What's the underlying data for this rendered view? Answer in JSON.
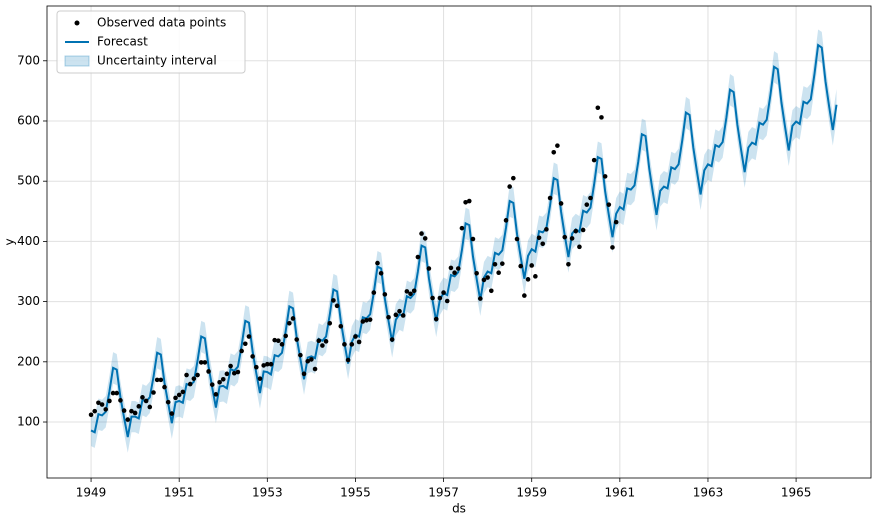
{
  "chart_data": {
    "type": "line",
    "x_label": "ds",
    "y_label": "y",
    "xlim": [
      1948.0,
      1966.7
    ],
    "ylim": [
      7,
      791
    ],
    "xticks": [
      1949,
      1951,
      1953,
      1955,
      1957,
      1959,
      1961,
      1963,
      1965
    ],
    "yticks": [
      100,
      200,
      300,
      400,
      500,
      600,
      700
    ],
    "grid": true,
    "legend": "upper-left",
    "x": [
      1949,
      1949.083,
      1949.167,
      1949.25,
      1949.333,
      1949.417,
      1949.5,
      1949.583,
      1949.667,
      1949.75,
      1949.833,
      1949.917,
      1950,
      1950.083,
      1950.167,
      1950.25,
      1950.333,
      1950.417,
      1950.5,
      1950.583,
      1950.667,
      1950.75,
      1950.833,
      1950.917,
      1951,
      1951.083,
      1951.167,
      1951.25,
      1951.333,
      1951.417,
      1951.5,
      1951.583,
      1951.667,
      1951.75,
      1951.833,
      1951.917,
      1952,
      1952.083,
      1952.167,
      1952.25,
      1952.333,
      1952.417,
      1952.5,
      1952.583,
      1952.667,
      1952.75,
      1952.833,
      1952.917,
      1953,
      1953.083,
      1953.167,
      1953.25,
      1953.333,
      1953.417,
      1953.5,
      1953.583,
      1953.667,
      1953.75,
      1953.833,
      1953.917,
      1954,
      1954.083,
      1954.167,
      1954.25,
      1954.333,
      1954.417,
      1954.5,
      1954.583,
      1954.667,
      1954.75,
      1954.833,
      1954.917,
      1955,
      1955.083,
      1955.167,
      1955.25,
      1955.333,
      1955.417,
      1955.5,
      1955.583,
      1955.667,
      1955.75,
      1955.833,
      1955.917,
      1956,
      1956.083,
      1956.167,
      1956.25,
      1956.333,
      1956.417,
      1956.5,
      1956.583,
      1956.667,
      1956.75,
      1956.833,
      1956.917,
      1957,
      1957.083,
      1957.167,
      1957.25,
      1957.333,
      1957.417,
      1957.5,
      1957.583,
      1957.667,
      1957.75,
      1957.833,
      1957.917,
      1958,
      1958.083,
      1958.167,
      1958.25,
      1958.333,
      1958.417,
      1958.5,
      1958.583,
      1958.667,
      1958.75,
      1958.833,
      1958.917,
      1959,
      1959.083,
      1959.167,
      1959.25,
      1959.333,
      1959.417,
      1959.5,
      1959.583,
      1959.667,
      1959.75,
      1959.833,
      1959.917,
      1960,
      1960.083,
      1960.167,
      1960.25,
      1960.333,
      1960.417,
      1960.5,
      1960.583,
      1960.667,
      1960.75,
      1960.833,
      1960.917,
      1961,
      1961.083,
      1961.167,
      1961.25,
      1961.333,
      1961.417,
      1961.5,
      1961.583,
      1961.667,
      1961.75,
      1961.833,
      1961.917,
      1962,
      1962.083,
      1962.167,
      1962.25,
      1962.333,
      1962.417,
      1962.5,
      1962.583,
      1962.667,
      1962.75,
      1962.833,
      1962.917,
      1963,
      1963.083,
      1963.167,
      1963.25,
      1963.333,
      1963.417,
      1963.5,
      1963.583,
      1963.667,
      1963.75,
      1963.833,
      1963.917,
      1964,
      1964.083,
      1964.167,
      1964.25,
      1964.333,
      1964.417,
      1964.5,
      1964.583,
      1964.667,
      1964.75,
      1964.833,
      1964.917,
      1965,
      1965.083,
      1965.167,
      1965.25,
      1965.333,
      1965.417,
      1965.5,
      1965.583,
      1965.667,
      1965.75,
      1965.833,
      1965.917
    ],
    "series": [
      {
        "name": "Uncertainty interval",
        "type": "band",
        "color": "#0072b2",
        "lower": [
          60,
          57,
          87,
          85,
          91,
          125,
          164,
          161,
          115,
          81,
          49,
          83,
          83,
          80,
          111,
          108,
          115,
          149,
          189,
          186,
          139,
          105,
          72,
          107,
          109,
          106,
          137,
          135,
          141,
          176,
          216,
          213,
          166,
          131,
          98,
          133,
          134,
          130,
          162,
          159,
          166,
          201,
          242,
          239,
          191,
          155,
          122,
          158,
          157,
          153,
          185,
          183,
          189,
          225,
          266,
          263,
          214,
          179,
          145,
          181,
          183,
          180,
          212,
          209,
          216,
          252,
          294,
          291,
          242,
          205,
          171,
          207,
          219,
          216,
          248,
          246,
          253,
          289,
          332,
          329,
          279,
          242,
          207,
          244,
          253,
          250,
          283,
          280,
          287,
          324,
          367,
          364,
          313,
          276,
          241,
          278,
          288,
          285,
          318,
          316,
          323,
          360,
          404,
          401,
          349,
          312,
          276,
          314,
          324,
          321,
          355,
          352,
          359,
          397,
          441,
          438,
          386,
          348,
          312,
          350,
          361,
          357,
          391,
          389,
          396,
          434,
          479,
          476,
          423,
          384,
          348,
          387,
          394,
          390,
          425,
          422,
          430,
          469,
          514,
          511,
          457,
          418,
          381,
          420,
          431,
          427,
          462,
          460,
          467,
          506,
          552,
          549,
          495,
          455,
          418,
          458,
          465,
          462,
          497,
          494,
          502,
          542,
          588,
          584,
          530,
          490,
          452,
          492,
          502,
          499,
          534,
          531,
          539,
          579,
          626,
          622,
          568,
          527,
          489,
          530,
          538,
          535,
          571,
          568,
          576,
          617,
          664,
          660,
          605,
          564,
          525,
          566,
          573,
          569,
          606,
          603,
          610,
          652,
          700,
          696,
          640,
          598,
          559,
          601
        ],
        "upper": [
          112,
          109,
          139,
          137,
          143,
          177,
          216,
          213,
          167,
          133,
          101,
          135,
          135,
          132,
          163,
          160,
          167,
          201,
          241,
          238,
          191,
          157,
          124,
          159,
          161,
          158,
          189,
          187,
          193,
          228,
          268,
          265,
          218,
          183,
          150,
          185,
          186,
          182,
          214,
          211,
          218,
          253,
          294,
          291,
          243,
          207,
          174,
          210,
          209,
          205,
          237,
          235,
          241,
          277,
          318,
          315,
          266,
          231,
          197,
          233,
          235,
          232,
          264,
          261,
          268,
          304,
          346,
          343,
          294,
          257,
          223,
          259,
          271,
          268,
          300,
          298,
          305,
          341,
          384,
          381,
          331,
          294,
          259,
          296,
          305,
          302,
          335,
          332,
          339,
          376,
          419,
          416,
          365,
          328,
          293,
          330,
          340,
          337,
          370,
          368,
          375,
          412,
          456,
          453,
          401,
          364,
          328,
          366,
          376,
          373,
          407,
          404,
          411,
          449,
          493,
          490,
          438,
          400,
          364,
          402,
          413,
          409,
          443,
          441,
          448,
          486,
          531,
          528,
          475,
          436,
          400,
          439,
          446,
          442,
          477,
          474,
          482,
          521,
          566,
          563,
          509,
          470,
          433,
          472,
          483,
          479,
          514,
          512,
          519,
          558,
          604,
          601,
          547,
          507,
          470,
          510,
          517,
          514,
          549,
          546,
          554,
          594,
          640,
          636,
          582,
          542,
          504,
          544,
          554,
          551,
          586,
          583,
          591,
          631,
          678,
          674,
          620,
          579,
          541,
          582,
          590,
          587,
          623,
          620,
          628,
          669,
          716,
          712,
          657,
          616,
          577,
          618,
          625,
          621,
          658,
          655,
          662,
          704,
          752,
          748,
          692,
          650,
          611,
          653
        ]
      },
      {
        "name": "Forecast",
        "type": "line",
        "color": "#0072b2",
        "values": [
          86,
          83,
          113,
          111,
          117,
          151,
          190,
          187,
          141,
          107,
          75,
          109,
          109,
          106,
          137,
          134,
          141,
          175,
          215,
          212,
          165,
          131,
          98,
          133,
          135,
          132,
          163,
          161,
          167,
          202,
          242,
          239,
          192,
          157,
          124,
          159,
          160,
          156,
          188,
          185,
          192,
          227,
          268,
          265,
          217,
          181,
          148,
          184,
          183,
          179,
          211,
          209,
          215,
          251,
          292,
          289,
          240,
          205,
          171,
          207,
          209,
          206,
          238,
          235,
          242,
          278,
          320,
          317,
          268,
          231,
          197,
          233,
          245,
          242,
          274,
          272,
          279,
          315,
          358,
          355,
          305,
          268,
          233,
          270,
          279,
          276,
          309,
          306,
          313,
          350,
          393,
          390,
          339,
          302,
          267,
          304,
          314,
          311,
          344,
          342,
          349,
          386,
          430,
          427,
          375,
          338,
          302,
          340,
          350,
          347,
          381,
          378,
          385,
          423,
          467,
          464,
          412,
          374,
          338,
          376,
          387,
          383,
          417,
          415,
          422,
          460,
          505,
          502,
          449,
          410,
          374,
          413,
          420,
          416,
          451,
          448,
          456,
          495,
          540,
          537,
          483,
          444,
          407,
          446,
          457,
          453,
          488,
          486,
          493,
          532,
          578,
          575,
          521,
          481,
          444,
          484,
          491,
          488,
          523,
          520,
          528,
          568,
          614,
          610,
          556,
          516,
          478,
          518,
          528,
          525,
          560,
          557,
          565,
          605,
          652,
          648,
          594,
          553,
          515,
          556,
          564,
          561,
          597,
          594,
          602,
          643,
          690,
          686,
          631,
          590,
          551,
          592,
          599,
          595,
          632,
          629,
          636,
          678,
          726,
          722,
          666,
          624,
          585,
          627
        ]
      },
      {
        "name": "Observed data points",
        "type": "scatter",
        "color": "#000000",
        "values": [
          112,
          118,
          132,
          129,
          121,
          135,
          148,
          148,
          136,
          119,
          104,
          118,
          115,
          126,
          141,
          135,
          125,
          149,
          170,
          170,
          158,
          133,
          114,
          140,
          145,
          150,
          178,
          163,
          172,
          178,
          199,
          199,
          184,
          162,
          146,
          166,
          171,
          180,
          193,
          181,
          183,
          218,
          230,
          242,
          209,
          191,
          172,
          194,
          196,
          196,
          236,
          235,
          229,
          243,
          264,
          272,
          237,
          211,
          180,
          201,
          204,
          188,
          235,
          227,
          234,
          264,
          302,
          293,
          259,
          229,
          203,
          229,
          242,
          233,
          267,
          269,
          270,
          315,
          364,
          347,
          312,
          274,
          237,
          278,
          284,
          277,
          317,
          313,
          318,
          374,
          413,
          405,
          355,
          306,
          271,
          306,
          315,
          301,
          356,
          348,
          355,
          422,
          465,
          467,
          404,
          347,
          305,
          336,
          340,
          318,
          362,
          348,
          363,
          435,
          491,
          505,
          404,
          359,
          310,
          337,
          360,
          342,
          406,
          396,
          420,
          472,
          548,
          559,
          463,
          407,
          362,
          405,
          417,
          391,
          419,
          461,
          472,
          535,
          622,
          606,
          508,
          461,
          390,
          432,
          null,
          null,
          null,
          null,
          null,
          null,
          null,
          null,
          null,
          null,
          null,
          null,
          null,
          null,
          null,
          null,
          null,
          null,
          null,
          null,
          null,
          null,
          null,
          null,
          null,
          null,
          null,
          null,
          null,
          null,
          null,
          null,
          null,
          null,
          null,
          null,
          null,
          null,
          null,
          null,
          null,
          null,
          null,
          null,
          null,
          null,
          null,
          null,
          null,
          null,
          null,
          null,
          null,
          null,
          null,
          null,
          null,
          null,
          null,
          null
        ]
      }
    ]
  }
}
